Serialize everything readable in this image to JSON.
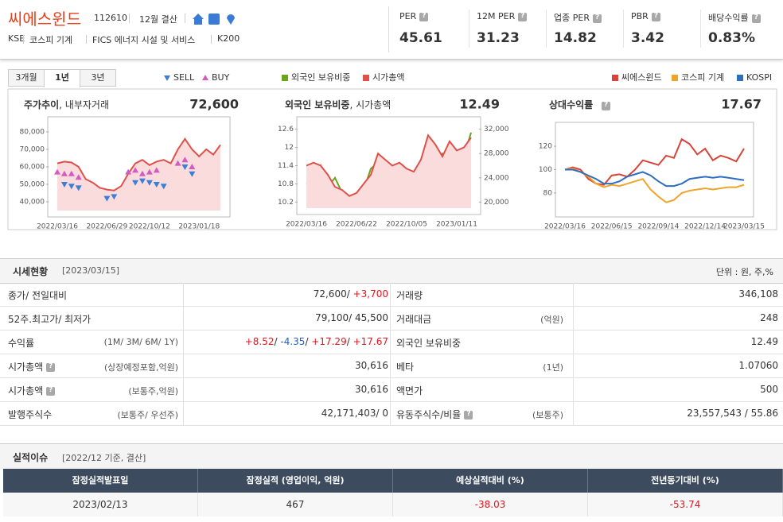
{
  "header": {
    "name": "씨에스윈드",
    "code": "112610",
    "fiscal": "12월 결산",
    "tags": [
      "KSE",
      "코스피 기계",
      "FICS 에너지 시설 및 서비스",
      "K200"
    ]
  },
  "metrics": [
    {
      "label": "PER",
      "value": "45.61"
    },
    {
      "label": "12M PER",
      "value": "31.23"
    },
    {
      "label": "업종 PER",
      "value": "14.82"
    },
    {
      "label": "PBR",
      "value": "3.42"
    },
    {
      "label": "배당수익률",
      "value": "0.83%"
    }
  ],
  "tabs": [
    "3개월",
    "1년",
    "3년"
  ],
  "active_tab": 1,
  "chart_data": [
    {
      "type": "line",
      "title": "주가추이",
      "subtitle": ", 내부자거래",
      "headline": "72,600",
      "categories": [
        "2022/03/16",
        null,
        null,
        null,
        null,
        null,
        null,
        "2022/06/29",
        null,
        null,
        null,
        null,
        null,
        "2022/10/12",
        null,
        null,
        null,
        null,
        null,
        null,
        "2023/01/18",
        null,
        null,
        null
      ],
      "ylim": [
        35000,
        85000
      ],
      "yticks": [
        {
          "value": 40000,
          "label": "40,000"
        },
        {
          "value": 50000,
          "label": "50,000"
        },
        {
          "value": 60000,
          "label": "60,000"
        },
        {
          "value": 70000,
          "label": "70,000"
        },
        {
          "value": 80000,
          "label": "80,000"
        }
      ],
      "series": [
        {
          "color": "#e0504a",
          "fill": "#fbdcdc",
          "values": [
            62000,
            63000,
            62500,
            60000,
            53000,
            51000,
            48000,
            47000,
            46500,
            49000,
            56000,
            62000,
            64000,
            61000,
            63000,
            64000,
            62000,
            70000,
            76000,
            70000,
            66000,
            70000,
            67000,
            72600
          ]
        },
        {
          "name": "SELL",
          "color": "#3b7fd6",
          "marker": "down",
          "values": [
            null,
            50000,
            49000,
            48000,
            null,
            null,
            null,
            42000,
            43000,
            null,
            null,
            51000,
            52000,
            51000,
            50000,
            49000,
            null,
            null,
            60000,
            56000,
            null,
            null,
            null,
            null
          ]
        },
        {
          "name": "BUY",
          "color": "#d35bc4",
          "marker": "up",
          "values": [
            57000,
            56000,
            56000,
            54000,
            null,
            null,
            null,
            null,
            null,
            null,
            57000,
            58000,
            56000,
            57000,
            58000,
            null,
            null,
            62000,
            64000,
            60000,
            null,
            null,
            null,
            null
          ]
        }
      ]
    },
    {
      "type": "line",
      "title": "외국인 보유비중",
      "subtitle": ", 시가총액",
      "headline": "12.49",
      "categories": [
        "2022/03/16",
        null,
        null,
        null,
        null,
        null,
        null,
        "2022/06/22",
        null,
        null,
        null,
        null,
        null,
        null,
        "2022/10/05",
        null,
        null,
        null,
        null,
        null,
        null,
        "2023/01/11",
        null,
        null
      ],
      "ylim": [
        10.0,
        12.8
      ],
      "yticks": [
        10.2,
        10.8,
        11.4,
        12,
        12.6
      ],
      "y2lim": [
        19000,
        33000
      ],
      "y2ticks": [
        {
          "value": 20000,
          "label": "20,000"
        },
        {
          "value": 24000,
          "label": "24,000"
        },
        {
          "value": 28000,
          "label": "28,000"
        },
        {
          "value": 32000,
          "label": "32,000"
        }
      ],
      "series": [
        {
          "name": "외국인 보유비중",
          "color": "#6aa31d",
          "values": [
            10.8,
            10.9,
            11.4,
            10.7,
            11.0,
            10.5,
            10.4,
            10.3,
            10.6,
            11.3,
            11.5,
            11.2,
            10.7,
            10.5,
            10.4,
            11.0,
            11.5,
            11.3,
            11.5,
            11.8,
            11.6,
            11.9,
            11.7,
            12.49
          ]
        },
        {
          "name": "시가총액",
          "color": "#e0504a",
          "fill": "#fbdcdc",
          "axis": "y2",
          "values": [
            26000,
            26500,
            26000,
            24500,
            22500,
            22000,
            21000,
            21500,
            23000,
            24500,
            28000,
            27000,
            26000,
            26500,
            25500,
            25000,
            27000,
            31000,
            29500,
            27500,
            30000,
            28500,
            29000,
            30616
          ]
        }
      ]
    },
    {
      "type": "line",
      "title": "상대수익률",
      "headline": "17.67",
      "categories": [
        "2022/03/16",
        null,
        null,
        null,
        null,
        null,
        "2022/06/15",
        null,
        null,
        null,
        null,
        null,
        "2022/09/14",
        null,
        null,
        null,
        null,
        null,
        "2022/12/14",
        null,
        null,
        null,
        null,
        "2023/03/15"
      ],
      "ylim": [
        65,
        135
      ],
      "yticks": [
        80,
        100,
        120
      ],
      "series": [
        {
          "name": "씨에스윈드",
          "color": "#d9443a",
          "values": [
            100,
            102,
            100,
            92,
            88,
            87,
            95,
            96,
            94,
            100,
            108,
            106,
            104,
            112,
            110,
            126,
            122,
            113,
            118,
            108,
            112,
            110,
            107,
            118
          ]
        },
        {
          "name": "코스피 기계",
          "color": "#f0a52a",
          "values": [
            100,
            101,
            98,
            94,
            88,
            85,
            87,
            86,
            88,
            90,
            92,
            83,
            77,
            72,
            74,
            80,
            82,
            83,
            84,
            83,
            84,
            85,
            85,
            87
          ]
        },
        {
          "name": "KOSPI",
          "color": "#2e6dc0",
          "values": [
            100,
            100,
            98,
            95,
            92,
            88,
            88,
            90,
            94,
            96,
            98,
            95,
            90,
            86,
            86,
            88,
            92,
            93,
            94,
            93,
            94,
            93,
            92,
            91
          ]
        }
      ]
    }
  ],
  "market": {
    "title": "시세현황",
    "date": "[2023/03/15]",
    "unit": "단위 : 원, 주,%",
    "rows": [
      [
        {
          "label": "종가/ 전일대비",
          "value": [
            {
              "text": "72,600/ "
            },
            {
              "text": "+3,700",
              "color": "#e8141b"
            }
          ]
        },
        {
          "label": "거래량",
          "value": [
            {
              "text": "346,108"
            }
          ]
        }
      ],
      [
        {
          "label": "52주.최고가/ 최저가",
          "value": [
            {
              "text": "79,100/ 45,500"
            }
          ]
        },
        {
          "label": "거래대금",
          "note": "(억원)",
          "value": [
            {
              "text": "248"
            }
          ]
        }
      ],
      [
        {
          "label": "수익률",
          "note": "(1M/ 3M/ 6M/ 1Y)",
          "value": [
            {
              "text": "+8.52",
              "color": "#e8141b"
            },
            {
              "text": "/ "
            },
            {
              "text": "-4.35",
              "color": "#1f5fd0"
            },
            {
              "text": "/ "
            },
            {
              "text": "+17.29",
              "color": "#e8141b"
            },
            {
              "text": "/ "
            },
            {
              "text": "+17.67",
              "color": "#e8141b"
            }
          ]
        },
        {
          "label": "외국인 보유비중",
          "value": [
            {
              "text": "12.49"
            }
          ]
        }
      ],
      [
        {
          "label": "시가총액",
          "help": true,
          "note": "(상장예정포함,억원)",
          "value": [
            {
              "text": "30,616"
            }
          ]
        },
        {
          "label": "베타",
          "note": "(1년)",
          "value": [
            {
              "text": "1.07060"
            }
          ]
        }
      ],
      [
        {
          "label": "시가총액",
          "help": true,
          "note": "(보통주,억원)",
          "value": [
            {
              "text": "30,616"
            }
          ]
        },
        {
          "label": "액면가",
          "value": [
            {
              "text": "500"
            }
          ]
        }
      ],
      [
        {
          "label": "발행주식수",
          "note": "(보통주/ 우선주)",
          "value": [
            {
              "text": "42,171,403/ 0"
            }
          ]
        },
        {
          "label": "유동주식수/비율",
          "help": true,
          "note": "(보통주)",
          "value": [
            {
              "text": "23,557,543 / 55.86"
            }
          ]
        }
      ]
    ]
  },
  "performance": {
    "title": "실적이슈",
    "note": "[2022/12 기준, 결산]",
    "headers": [
      "잠정실적발표일",
      "잠정실적 (영업이익, 억원)",
      "예상실적대비 (%)",
      "전년동기대비 (%)"
    ],
    "rows": [
      [
        {
          "text": "2023/02/13"
        },
        {
          "text": "467"
        },
        {
          "text": "-38.03",
          "color": "#e8141b"
        },
        {
          "text": "-53.74",
          "color": "#e8141b"
        }
      ]
    ]
  }
}
